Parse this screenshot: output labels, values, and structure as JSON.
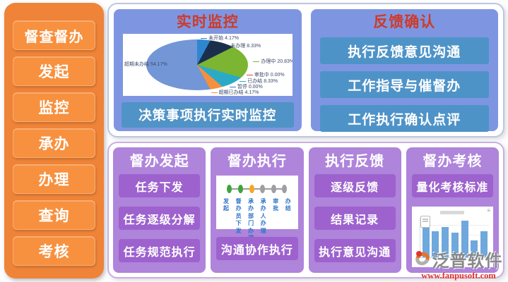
{
  "sidebar": {
    "title": "督查督办",
    "items": [
      {
        "label": "发起"
      },
      {
        "label": "监控"
      },
      {
        "label": "承办"
      },
      {
        "label": "办理"
      },
      {
        "label": "查询"
      },
      {
        "label": "考核"
      }
    ]
  },
  "monitor_panel": {
    "title": "实时监控",
    "caption": "决策事项执行实时监控"
  },
  "feedback_panel": {
    "title": "反馈确认",
    "items": [
      {
        "label": "执行反馈意见沟通"
      },
      {
        "label": "工作指导与催督办"
      },
      {
        "label": "工作执行确认点评"
      }
    ]
  },
  "bottom_panels": [
    {
      "title": "督办发起",
      "buttons": [
        {
          "label": "任务下发"
        },
        {
          "label": "任务逐级分解"
        },
        {
          "label": "任务规范执行"
        }
      ]
    },
    {
      "title": "督办执行",
      "buttons": [
        {
          "label": "沟通协作执行"
        }
      ]
    },
    {
      "title": "执行反馈",
      "buttons": [
        {
          "label": "逐级反馈"
        },
        {
          "label": "结果记录"
        },
        {
          "label": "执行意见沟通"
        }
      ]
    },
    {
      "title": "督办考核",
      "buttons": [
        {
          "label": "量化考核标准"
        }
      ]
    }
  ],
  "timeline": {
    "stages": [
      {
        "label": "发起",
        "color": "#3FA33C"
      },
      {
        "label": "督办员下发",
        "color": "#3FA33C"
      },
      {
        "label": "承办部门办理",
        "color": "#F5A623"
      },
      {
        "label": "承办人办理",
        "color": "#9E9EA3"
      },
      {
        "label": "审批",
        "color": "#9E9EA3"
      },
      {
        "label": "办结",
        "color": "#9E9EA3"
      }
    ]
  },
  "watermark": {
    "brand": "泛普软件",
    "url": "www.fanpusoft.com"
  },
  "chart_data": [
    {
      "type": "pie",
      "title": "",
      "context": "实时监控 panel pie chart",
      "unit": "%",
      "slices": [
        {
          "label": "未开始",
          "value": 4.17,
          "color": "#2E86D0"
        },
        {
          "label": "未办理",
          "value": 8.33,
          "color": "#1B2F4D"
        },
        {
          "label": "办理中",
          "value": 20.83,
          "color": "#7CB532"
        },
        {
          "label": "审批中",
          "value": 0.0,
          "color": "#E8432C"
        },
        {
          "label": "已办结",
          "value": 8.33,
          "color": "#2BAAC8"
        },
        {
          "label": "暂停",
          "value": 0.0,
          "color": "#4472C4"
        },
        {
          "label": "超期已办结",
          "value": 4.17,
          "color": "#F5903D"
        },
        {
          "label": "超期未办结",
          "value": 54.17,
          "color": "#7396D6"
        }
      ]
    },
    {
      "type": "bar",
      "title": "",
      "context": "督办考核 panel mini bar chart (axis labels illegible)",
      "values": [
        4.8,
        3.4,
        3.9,
        3.2,
        4.7,
        2.2,
        3.4
      ],
      "bar_color": "#6FA8DC",
      "ylim": [
        0,
        5
      ]
    }
  ]
}
